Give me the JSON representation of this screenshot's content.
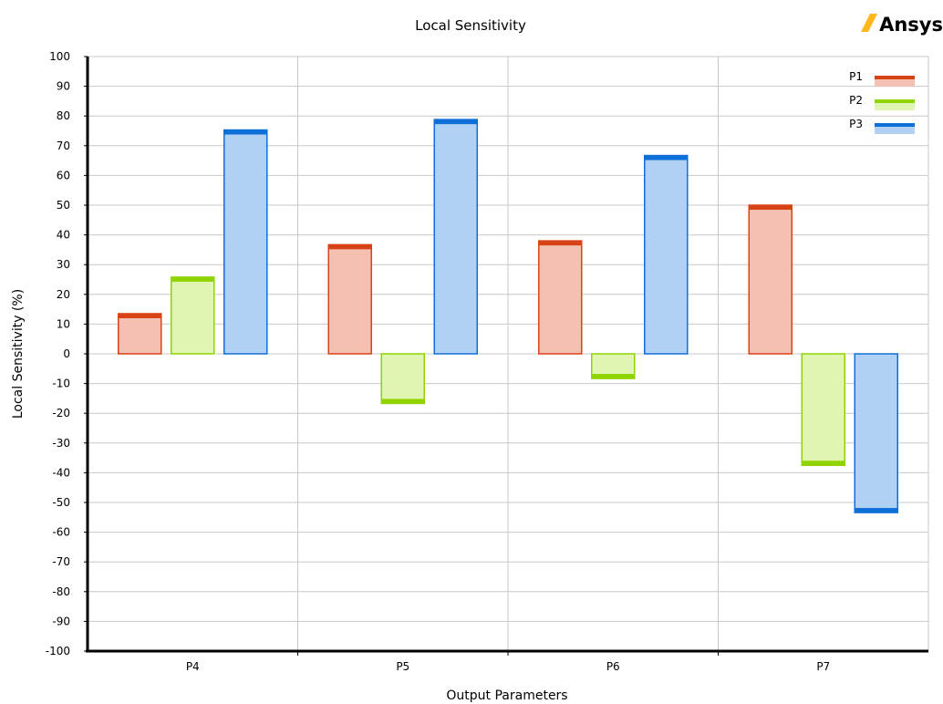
{
  "brand": {
    "logo_text": "Ansys",
    "logo_accent": "#ffb71b"
  },
  "chart_data": {
    "type": "bar",
    "title": "Local Sensitivity",
    "xlabel": "Output Parameters",
    "ylabel": "Local Sensitivity (%)",
    "ylim": [
      -100,
      100
    ],
    "ytick_step": 10,
    "grid": true,
    "legend_position": "top-right",
    "categories": [
      "P4",
      "P5",
      "P6",
      "P7"
    ],
    "series": [
      {
        "name": "P1",
        "values": [
          13.5,
          36.7,
          38,
          50
        ],
        "color": "#d84315",
        "fill": "#f4c0b2"
      },
      {
        "name": "P2",
        "values": [
          25.8,
          -16.7,
          -8.3,
          -37.5
        ],
        "color": "#8fd400",
        "fill": "#e1f5b3"
      },
      {
        "name": "P3",
        "values": [
          75.3,
          78.8,
          66.7,
          -53.4
        ],
        "color": "#0f6fd8",
        "fill": "#b0d0f4"
      }
    ]
  }
}
